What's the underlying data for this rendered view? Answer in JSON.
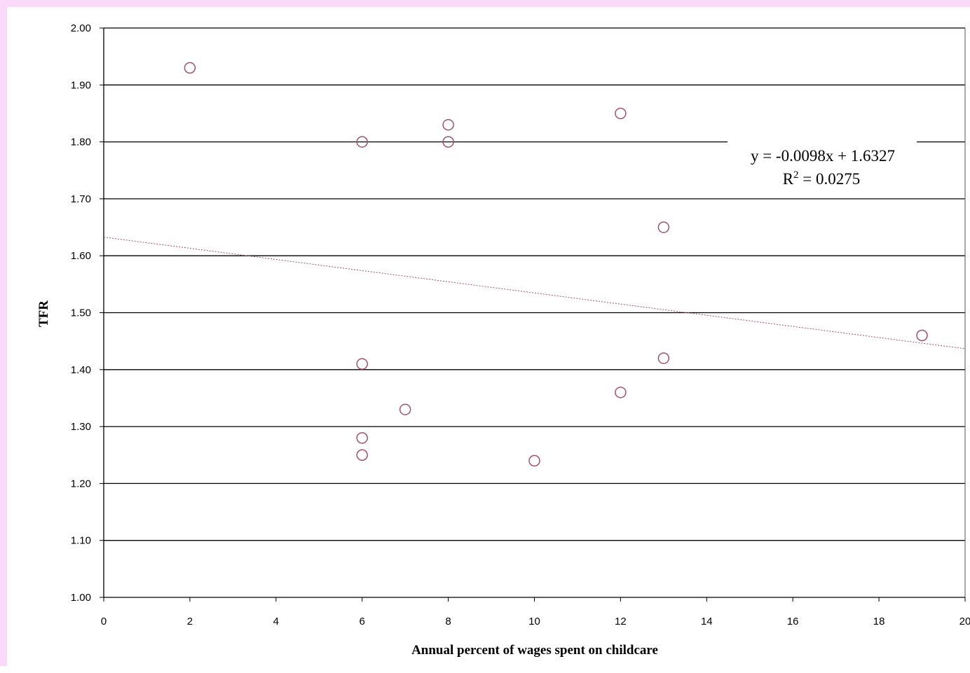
{
  "chart_data": {
    "type": "scatter",
    "title": "",
    "xlabel": "Annual percent of wages spent on childcare",
    "ylabel": "TFR",
    "xlim": [
      0,
      20
    ],
    "ylim": [
      1.0,
      2.0
    ],
    "x_ticks": [
      "0",
      "2",
      "4",
      "6",
      "8",
      "10",
      "12",
      "14",
      "16",
      "18",
      "20"
    ],
    "y_ticks": [
      "1.00",
      "1.10",
      "1.20",
      "1.30",
      "1.40",
      "1.50",
      "1.60",
      "1.70",
      "1.80",
      "1.90",
      "2.00"
    ],
    "grid": "horizontal",
    "marker_color": "#a0506e",
    "points": [
      {
        "x": 2,
        "y": 1.93
      },
      {
        "x": 6,
        "y": 1.8
      },
      {
        "x": 8,
        "y": 1.83
      },
      {
        "x": 8,
        "y": 1.8
      },
      {
        "x": 12,
        "y": 1.85
      },
      {
        "x": 13,
        "y": 1.65
      },
      {
        "x": 19,
        "y": 1.46
      },
      {
        "x": 13,
        "y": 1.42
      },
      {
        "x": 6,
        "y": 1.41
      },
      {
        "x": 12,
        "y": 1.36
      },
      {
        "x": 7,
        "y": 1.33
      },
      {
        "x": 6,
        "y": 1.28
      },
      {
        "x": 6,
        "y": 1.25
      },
      {
        "x": 10,
        "y": 1.24
      }
    ],
    "trendline": {
      "type": "linear",
      "slope": -0.0098,
      "intercept": 1.6327,
      "style": "dotted",
      "color": "#a0506e",
      "equation": "y = -0.0098x + 1.6327",
      "r2_prefix": "R",
      "r2_sup": "2",
      "r2_suffix": " = 0.0275"
    }
  }
}
